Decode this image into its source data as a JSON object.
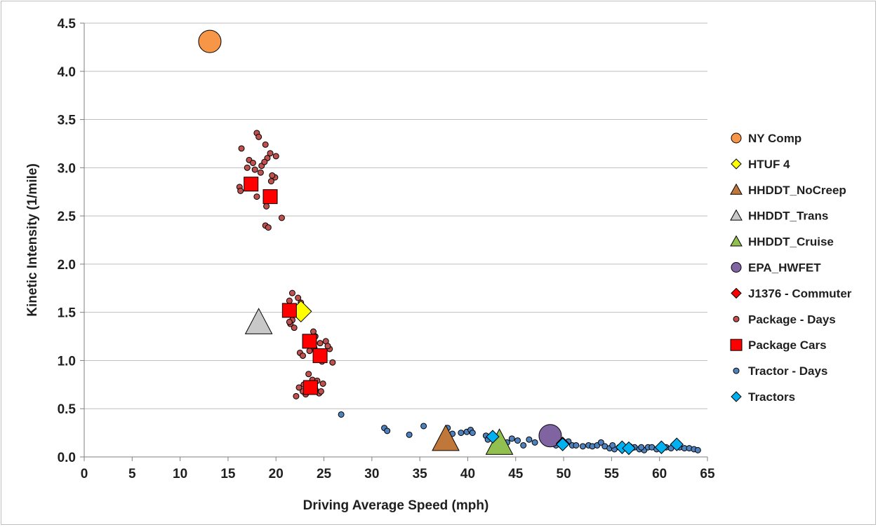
{
  "chart_data": {
    "type": "scatter",
    "title": "",
    "xlabel": "Driving Average Speed (mph)",
    "ylabel": "Kinetic Intensity (1/mile)",
    "xlim": [
      0,
      65
    ],
    "ylim": [
      0,
      4.5
    ],
    "x_ticks": [
      "0",
      "5",
      "10",
      "15",
      "20",
      "25",
      "30",
      "35",
      "40",
      "45",
      "50",
      "55",
      "60",
      "65"
    ],
    "y_ticks": [
      "0.0",
      "0.5",
      "1.0",
      "1.5",
      "2.0",
      "2.5",
      "3.0",
      "3.5",
      "4.0",
      "4.5"
    ],
    "grid": "horizontal",
    "legend_position": "right",
    "series": [
      {
        "name": "NY Comp",
        "marker": "circle",
        "color": "#f79646",
        "size": "large",
        "points": [
          [
            13.1,
            4.31
          ]
        ]
      },
      {
        "name": "HTUF 4",
        "marker": "diamond",
        "color": "#ffff00",
        "size": "large",
        "points": [
          [
            22.6,
            1.51
          ]
        ]
      },
      {
        "name": "HHDDT_NoCreep",
        "marker": "triangle",
        "color": "#c0773a",
        "size": "large",
        "points": [
          [
            37.7,
            0.17
          ]
        ]
      },
      {
        "name": "HHDDT_Trans",
        "marker": "triangle",
        "color": "#c8c8c8",
        "size": "large",
        "points": [
          [
            18.2,
            1.38
          ]
        ]
      },
      {
        "name": "HHDDT_Cruise",
        "marker": "triangle",
        "color": "#92c050",
        "size": "large",
        "points": [
          [
            43.3,
            0.13
          ]
        ]
      },
      {
        "name": "EPA_HWFET",
        "marker": "circle",
        "color": "#8064a2",
        "size": "large",
        "points": [
          [
            48.6,
            0.22
          ]
        ]
      },
      {
        "name": "J1376 - Commuter",
        "marker": "diamond",
        "color": "#ff0000",
        "size": "medium",
        "points": [
          [
            49.9,
            0.14
          ]
        ]
      },
      {
        "name": "Package - Days",
        "marker": "circle",
        "color": "#c0504d",
        "size": "small",
        "points": [
          [
            18.0,
            3.36
          ],
          [
            18.2,
            3.32
          ],
          [
            18.9,
            3.24
          ],
          [
            16.4,
            3.2
          ],
          [
            19.4,
            3.15
          ],
          [
            19.1,
            3.1
          ],
          [
            17.2,
            3.08
          ],
          [
            17.6,
            3.05
          ],
          [
            18.5,
            3.02
          ],
          [
            17.0,
            3.0
          ],
          [
            20.0,
            3.12
          ],
          [
            18.8,
            3.06
          ],
          [
            19.9,
            2.9
          ],
          [
            19.5,
            2.86
          ],
          [
            16.2,
            2.8
          ],
          [
            16.3,
            2.76
          ],
          [
            18.0,
            2.7
          ],
          [
            19.0,
            2.6
          ],
          [
            18.9,
            2.4
          ],
          [
            19.2,
            2.38
          ],
          [
            20.6,
            2.48
          ],
          [
            17.8,
            2.98
          ],
          [
            19.6,
            2.92
          ],
          [
            18.4,
            2.95
          ],
          [
            21.7,
            1.7
          ],
          [
            22.3,
            1.65
          ],
          [
            21.4,
            1.62
          ],
          [
            22.6,
            1.6
          ],
          [
            22.1,
            1.55
          ],
          [
            21.6,
            1.52
          ],
          [
            22.8,
            1.48
          ],
          [
            21.7,
            1.42
          ],
          [
            21.5,
            1.38
          ],
          [
            21.9,
            1.34
          ],
          [
            21.4,
            1.4
          ],
          [
            23.9,
            1.3
          ],
          [
            24.1,
            1.25
          ],
          [
            23.2,
            1.22
          ],
          [
            24.6,
            1.18
          ],
          [
            25.2,
            1.2
          ],
          [
            25.6,
            1.12
          ],
          [
            22.5,
            1.08
          ],
          [
            22.8,
            1.05
          ],
          [
            23.5,
            1.1
          ],
          [
            24.3,
            1.08
          ],
          [
            25.0,
            1.03
          ],
          [
            24.8,
            0.99
          ],
          [
            25.9,
            0.98
          ],
          [
            25.4,
            1.15
          ],
          [
            24.0,
            1.13
          ],
          [
            23.4,
            0.86
          ],
          [
            23.8,
            0.8
          ],
          [
            22.9,
            0.75
          ],
          [
            22.4,
            0.72
          ],
          [
            22.8,
            0.68
          ],
          [
            23.1,
            0.65
          ],
          [
            24.1,
            0.7
          ],
          [
            24.5,
            0.66
          ],
          [
            24.9,
            0.76
          ],
          [
            24.7,
            0.68
          ],
          [
            22.1,
            0.63
          ],
          [
            24.3,
            0.79
          ]
        ]
      },
      {
        "name": "Package Cars",
        "marker": "square",
        "color": "#ff0000",
        "size": "large",
        "points": [
          [
            17.4,
            2.83
          ],
          [
            19.4,
            2.7
          ],
          [
            21.4,
            1.52
          ],
          [
            23.5,
            1.2
          ],
          [
            24.6,
            1.05
          ],
          [
            23.6,
            0.72
          ]
        ]
      },
      {
        "name": "Tractor - Days",
        "marker": "circle",
        "color": "#4f81bd",
        "size": "small",
        "points": [
          [
            26.8,
            0.44
          ],
          [
            31.3,
            0.3
          ],
          [
            31.6,
            0.27
          ],
          [
            33.9,
            0.23
          ],
          [
            35.4,
            0.32
          ],
          [
            37.9,
            0.3
          ],
          [
            38.4,
            0.24
          ],
          [
            39.3,
            0.25
          ],
          [
            39.9,
            0.26
          ],
          [
            40.3,
            0.28
          ],
          [
            40.5,
            0.25
          ],
          [
            41.9,
            0.22
          ],
          [
            42.3,
            0.2
          ],
          [
            42.1,
            0.18
          ],
          [
            44.1,
            0.15
          ],
          [
            44.6,
            0.19
          ],
          [
            45.2,
            0.17
          ],
          [
            45.8,
            0.12
          ],
          [
            46.4,
            0.18
          ],
          [
            47.0,
            0.15
          ],
          [
            48.2,
            0.17
          ],
          [
            48.6,
            0.14
          ],
          [
            49.2,
            0.12
          ],
          [
            50.5,
            0.16
          ],
          [
            50.9,
            0.12
          ],
          [
            51.3,
            0.12
          ],
          [
            52.0,
            0.11
          ],
          [
            52.6,
            0.12
          ],
          [
            53.0,
            0.11
          ],
          [
            53.5,
            0.12
          ],
          [
            53.9,
            0.15
          ],
          [
            54.3,
            0.11
          ],
          [
            54.8,
            0.09
          ],
          [
            55.3,
            0.08
          ],
          [
            55.8,
            0.1
          ],
          [
            56.3,
            0.09
          ],
          [
            56.9,
            0.11
          ],
          [
            57.4,
            0.1
          ],
          [
            57.9,
            0.08
          ],
          [
            58.4,
            0.07
          ],
          [
            58.8,
            0.1
          ],
          [
            59.2,
            0.1
          ],
          [
            59.7,
            0.08
          ],
          [
            60.3,
            0.09
          ],
          [
            60.7,
            0.1
          ],
          [
            61.2,
            0.09
          ],
          [
            61.6,
            0.13
          ],
          [
            62.1,
            0.1
          ],
          [
            62.6,
            0.09
          ],
          [
            63.1,
            0.09
          ],
          [
            63.6,
            0.08
          ],
          [
            64.0,
            0.07
          ],
          [
            55.1,
            0.12
          ],
          [
            57.1,
            0.09
          ],
          [
            58.1,
            0.1
          ]
        ]
      },
      {
        "name": "Tractors",
        "marker": "diamond",
        "color": "#00b0f0",
        "size": "medium",
        "points": [
          [
            42.6,
            0.21
          ],
          [
            49.9,
            0.13
          ],
          [
            56.1,
            0.1
          ],
          [
            56.8,
            0.09
          ],
          [
            60.2,
            0.1
          ],
          [
            61.8,
            0.13
          ]
        ]
      }
    ]
  }
}
